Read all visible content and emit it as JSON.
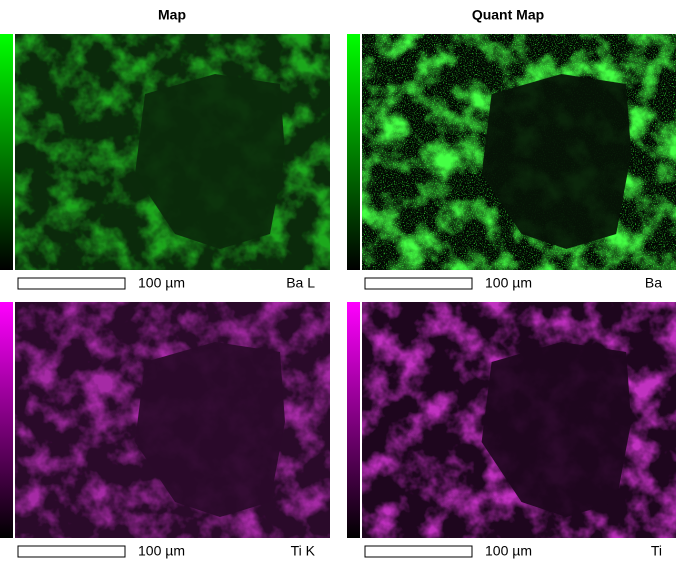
{
  "columns": [
    "Map",
    "Quant Map"
  ],
  "panels": [
    {
      "scale": "100 µm",
      "label": "Ba L"
    },
    {
      "scale": "100 µm",
      "label": "Ba"
    },
    {
      "scale": "100 µm",
      "label": "Ti K"
    },
    {
      "scale": "100 µm",
      "label": "Ti"
    }
  ]
}
